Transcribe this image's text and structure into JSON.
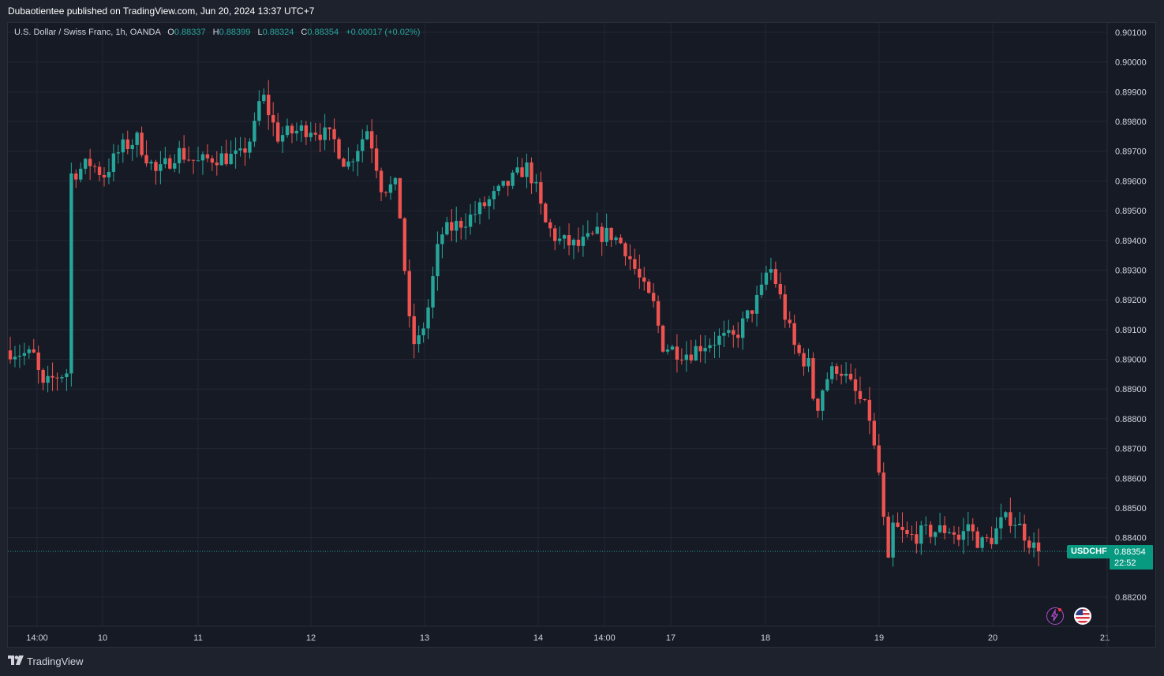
{
  "header": {
    "published_line": "Dubaotientee published on TradingView.com, Jun 20, 2024 13:37 UTC+7"
  },
  "legend": {
    "symbol_desc": "U.S. Dollar / Swiss Franc, 1h, OANDA",
    "open_label": "O",
    "open_value": "0.88337",
    "high_label": "H",
    "high_value": "0.88399",
    "low_label": "L",
    "low_value": "0.88324",
    "close_label": "C",
    "close_value": "0.88354",
    "change": "+0.00017 (+0.02%)"
  },
  "badges": {
    "symbol": "USDCHF",
    "price": "0.88354",
    "countdown": "22:52"
  },
  "footer": {
    "brand": "TradingView"
  },
  "icons": [
    "lightning-icon",
    "us-flag-icon",
    "tradingview-logo-icon"
  ],
  "colors": {
    "up": "#26a69a",
    "down": "#ef5350",
    "background": "#161a25",
    "grid": "#232734",
    "price_line": "#26a69a"
  },
  "chart_data": {
    "type": "candlestick",
    "title": "U.S. Dollar / Swiss Franc, 1h, OANDA",
    "ylim": [
      0.8815,
      0.9013
    ],
    "y_ticks": [
      "0.90100",
      "0.90000",
      "0.89900",
      "0.89800",
      "0.89700",
      "0.89600",
      "0.89500",
      "0.89400",
      "0.89300",
      "0.89200",
      "0.89100",
      "0.89000",
      "0.88900",
      "0.88800",
      "0.88700",
      "0.88600",
      "0.88500",
      "0.88400",
      "0.88200"
    ],
    "x_ticks": [
      "14:00",
      "10",
      "11",
      "12",
      "13",
      "14",
      "14:00",
      "17",
      "18",
      "19",
      "20",
      "21"
    ],
    "last_price": 0.88354,
    "path_points": [
      [
        0,
        0.8903
      ],
      [
        18,
        0.8901
      ],
      [
        24,
        0.889
      ],
      [
        33,
        0.8894
      ],
      [
        44,
        0.8896
      ],
      [
        45,
        0.8962
      ],
      [
        60,
        0.8966
      ],
      [
        70,
        0.8962
      ],
      [
        83,
        0.8971
      ],
      [
        95,
        0.8974
      ],
      [
        110,
        0.8962
      ],
      [
        125,
        0.897
      ],
      [
        141,
        0.8966
      ],
      [
        152,
        0.8968
      ],
      [
        172,
        0.8968
      ],
      [
        182,
        0.8976
      ],
      [
        188,
        0.899
      ],
      [
        200,
        0.8975
      ],
      [
        225,
        0.8978
      ],
      [
        242,
        0.8974
      ],
      [
        252,
        0.8965
      ],
      [
        268,
        0.8978
      ],
      [
        278,
        0.8958
      ],
      [
        290,
        0.8958
      ],
      [
        300,
        0.8906
      ],
      [
        305,
        0.8905
      ],
      [
        312,
        0.8915
      ],
      [
        322,
        0.8942
      ],
      [
        345,
        0.8948
      ],
      [
        368,
        0.8957
      ],
      [
        380,
        0.8962
      ],
      [
        386,
        0.8965
      ],
      [
        392,
        0.896
      ],
      [
        400,
        0.8946
      ],
      [
        410,
        0.894
      ],
      [
        425,
        0.8938
      ],
      [
        440,
        0.8942
      ],
      [
        450,
        0.8942
      ],
      [
        460,
        0.8938
      ],
      [
        468,
        0.893
      ],
      [
        476,
        0.8922
      ],
      [
        482,
        0.8918
      ],
      [
        488,
        0.8905
      ],
      [
        498,
        0.8903
      ],
      [
        508,
        0.8902
      ],
      [
        518,
        0.8905
      ],
      [
        532,
        0.8907
      ],
      [
        542,
        0.8907
      ],
      [
        550,
        0.8913
      ],
      [
        562,
        0.8922
      ],
      [
        568,
        0.8932
      ],
      [
        574,
        0.8925
      ],
      [
        580,
        0.8915
      ],
      [
        588,
        0.8903
      ],
      [
        598,
        0.8898
      ],
      [
        603,
        0.8882
      ],
      [
        610,
        0.8893
      ],
      [
        620,
        0.8898
      ],
      [
        628,
        0.8892
      ],
      [
        638,
        0.8885
      ],
      [
        644,
        0.888
      ],
      [
        648,
        0.8866
      ],
      [
        652,
        0.8859
      ],
      [
        654,
        0.8845
      ],
      [
        657,
        0.8828
      ],
      [
        660,
        0.8844
      ],
      [
        672,
        0.884
      ],
      [
        688,
        0.8842
      ],
      [
        705,
        0.8843
      ],
      [
        712,
        0.8838
      ],
      [
        716,
        0.8846
      ],
      [
        722,
        0.884
      ],
      [
        728,
        0.8838
      ],
      [
        735,
        0.884
      ],
      [
        742,
        0.8845
      ],
      [
        750,
        0.8847
      ],
      [
        760,
        0.8841
      ],
      [
        766,
        0.8837
      ],
      [
        770,
        0.8835
      ]
    ]
  }
}
